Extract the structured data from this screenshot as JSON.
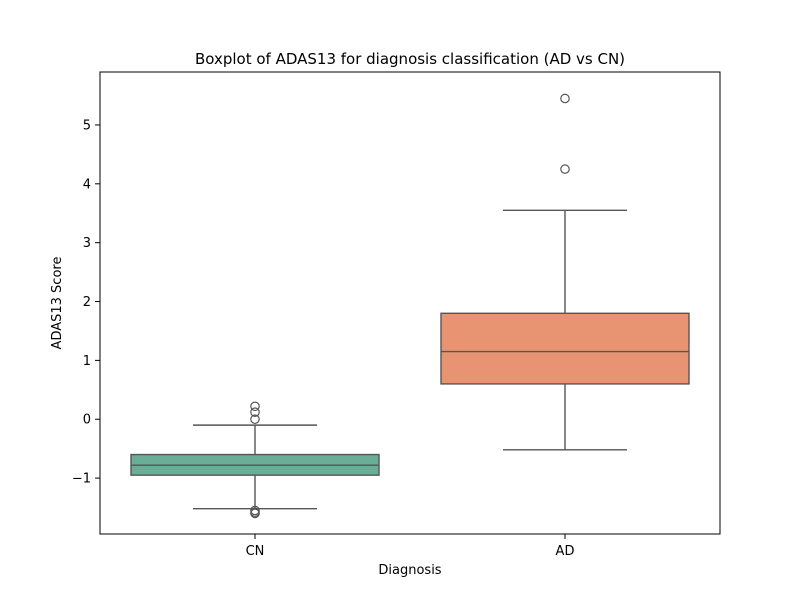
{
  "chart_data": {
    "type": "boxplot",
    "title": "Boxplot of ADAS13 for diagnosis classification (AD vs CN)",
    "xlabel": "Diagnosis",
    "ylabel": "ADAS13 Score",
    "ylim": [
      -1.95,
      5.9
    ],
    "yticks": [
      -1,
      0,
      1,
      2,
      3,
      4,
      5
    ],
    "ytick_labels": [
      "−1",
      "0",
      "1",
      "2",
      "3",
      "4",
      "5"
    ],
    "categories": [
      "CN",
      "AD"
    ],
    "grid": false,
    "series": [
      {
        "name": "CN",
        "color": "#6aae97",
        "q1": -0.95,
        "median": -0.78,
        "q3": -0.6,
        "whisker_low": -1.52,
        "whisker_high": -0.1,
        "outliers": [
          0.22,
          0.12,
          0.0,
          -1.55,
          -1.58,
          -1.6
        ]
      },
      {
        "name": "AD",
        "color": "#e89472",
        "q1": 0.6,
        "median": 1.15,
        "q3": 1.8,
        "whisker_low": -0.52,
        "whisker_high": 3.55,
        "outliers": [
          4.25,
          5.45
        ]
      }
    ]
  }
}
